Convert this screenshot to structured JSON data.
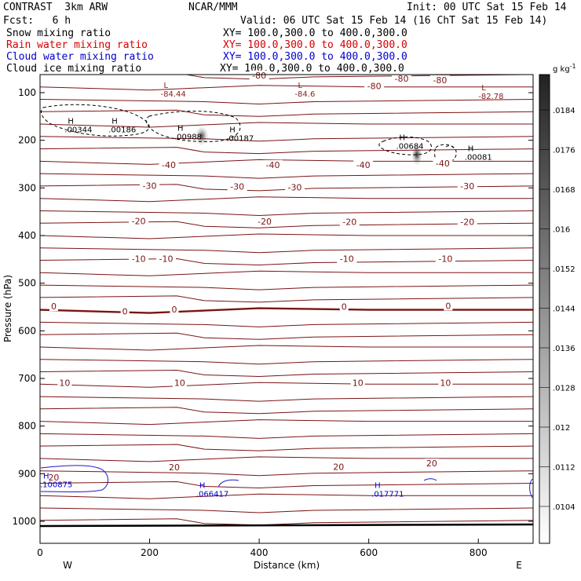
{
  "header": {
    "model": "CONTRAST  3km ARW",
    "org": "NCAR/MMM",
    "init": "Init: 00 UTC Sat 15 Feb 14",
    "fcst": "Fcst:   6 h",
    "valid": "Valid: 06 UTC Sat 15 Feb 14 (16 ChT Sat 15 Feb 14)"
  },
  "legend": [
    {
      "label": "Snow mixing ratio",
      "xy": "XY= 100.0,300.0 to 400.0,300.0",
      "color": "#000000"
    },
    {
      "label": "Rain water mixing ratio",
      "xy": "XY= 100.0,300.0 to 400.0,300.0",
      "color": "#d40000"
    },
    {
      "label": "Cloud water mixing ratio",
      "xy": "XY= 100.0,300.0 to 400.0,300.0",
      "color": "#0000cc"
    },
    {
      "label": "Cloud ice mixing ratio",
      "xy": "XY= 100.0,300.0 to 400.0,300.0",
      "color": "#000000"
    }
  ],
  "chart_data": {
    "type": "cross-section contour",
    "xlabel": "Distance (km)",
    "ylabel": "Pressure (hPa)",
    "xlim": [
      0,
      900
    ],
    "ylim": [
      1050,
      50
    ],
    "x_ticks": [
      0,
      200,
      400,
      600,
      800
    ],
    "y_ticks": [
      100,
      200,
      300,
      400,
      500,
      600,
      700,
      800,
      900,
      1000
    ],
    "left_end": "W",
    "right_end": "E",
    "temperature_labels": [
      {
        "text": "-80",
        "x": 400,
        "p": 65
      },
      {
        "text": "-80",
        "x": 660,
        "p": 72
      },
      {
        "text": "-80",
        "x": 730,
        "p": 75
      },
      {
        "text": "-80",
        "x": 610,
        "p": 88
      },
      {
        "text": "-40",
        "x": 235,
        "p": 253
      },
      {
        "text": "-40",
        "x": 425,
        "p": 253
      },
      {
        "text": "-40",
        "x": 590,
        "p": 253
      },
      {
        "text": "-40",
        "x": 735,
        "p": 250
      },
      {
        "text": "-30",
        "x": 200,
        "p": 297
      },
      {
        "text": "-30",
        "x": 360,
        "p": 299
      },
      {
        "text": "-30",
        "x": 465,
        "p": 300
      },
      {
        "text": "-30",
        "x": 780,
        "p": 298
      },
      {
        "text": "-20",
        "x": 180,
        "p": 371
      },
      {
        "text": "-20",
        "x": 410,
        "p": 372
      },
      {
        "text": "-20",
        "x": 565,
        "p": 373
      },
      {
        "text": "-20",
        "x": 780,
        "p": 373
      },
      {
        "text": "-10",
        "x": 180,
        "p": 450
      },
      {
        "text": "-10",
        "x": 230,
        "p": 450
      },
      {
        "text": "-10",
        "x": 560,
        "p": 450
      },
      {
        "text": "-10",
        "x": 740,
        "p": 450
      },
      {
        "text": "0",
        "x": 25,
        "p": 550
      },
      {
        "text": "0",
        "x": 155,
        "p": 561
      },
      {
        "text": "0",
        "x": 245,
        "p": 557
      },
      {
        "text": "0",
        "x": 555,
        "p": 551
      },
      {
        "text": "0",
        "x": 745,
        "p": 549
      },
      {
        "text": "10",
        "x": 45,
        "p": 711
      },
      {
        "text": "10",
        "x": 255,
        "p": 711
      },
      {
        "text": "10",
        "x": 580,
        "p": 711
      },
      {
        "text": "10",
        "x": 740,
        "p": 711
      },
      {
        "text": "20",
        "x": 245,
        "p": 888
      },
      {
        "text": "20",
        "x": 545,
        "p": 887
      },
      {
        "text": "20",
        "x": 715,
        "p": 880
      },
      {
        "text": "20",
        "x": 25,
        "p": 909
      }
    ],
    "extrema": [
      {
        "kind": "L",
        "value": "-84.44",
        "x": 220,
        "p": 95,
        "color": "#8b1a1a"
      },
      {
        "kind": "L",
        "value": "-84.6",
        "x": 465,
        "p": 95,
        "color": "#8b1a1a"
      },
      {
        "kind": "L",
        "value": "-82.78",
        "x": 800,
        "p": 100,
        "color": "#8b1a1a"
      },
      {
        "kind": "H",
        "value": ".00344",
        "x": 45,
        "p": 170,
        "color": "#000000"
      },
      {
        "kind": "H",
        "value": ".00186",
        "x": 125,
        "p": 170,
        "color": "#000000"
      },
      {
        "kind": "H",
        "value": ".00988",
        "x": 245,
        "p": 185,
        "color": "#000000"
      },
      {
        "kind": "H",
        "value": ".00187",
        "x": 340,
        "p": 188,
        "color": "#000000"
      },
      {
        "kind": "H",
        "value": ".00684",
        "x": 650,
        "p": 205,
        "color": "#000000"
      },
      {
        "kind": "H",
        "value": ".00081",
        "x": 775,
        "p": 228,
        "color": "#000000"
      },
      {
        "kind": "H",
        "value": ".100875",
        "x": 0,
        "p": 915,
        "color": "#0000cc"
      },
      {
        "kind": "H",
        "value": ".066417",
        "x": 285,
        "p": 935,
        "color": "#0000cc"
      },
      {
        "kind": "H",
        "value": ".017771",
        "x": 605,
        "p": 935,
        "color": "#0000cc"
      }
    ],
    "colorbar": {
      "unit": "g kg",
      "unit_exp": "-1",
      "ticks": [
        ".0104",
        ".0112",
        ".012",
        ".0128",
        ".0136",
        ".0144",
        ".0152",
        ".016",
        ".0168",
        ".0176",
        ".0184"
      ]
    }
  }
}
